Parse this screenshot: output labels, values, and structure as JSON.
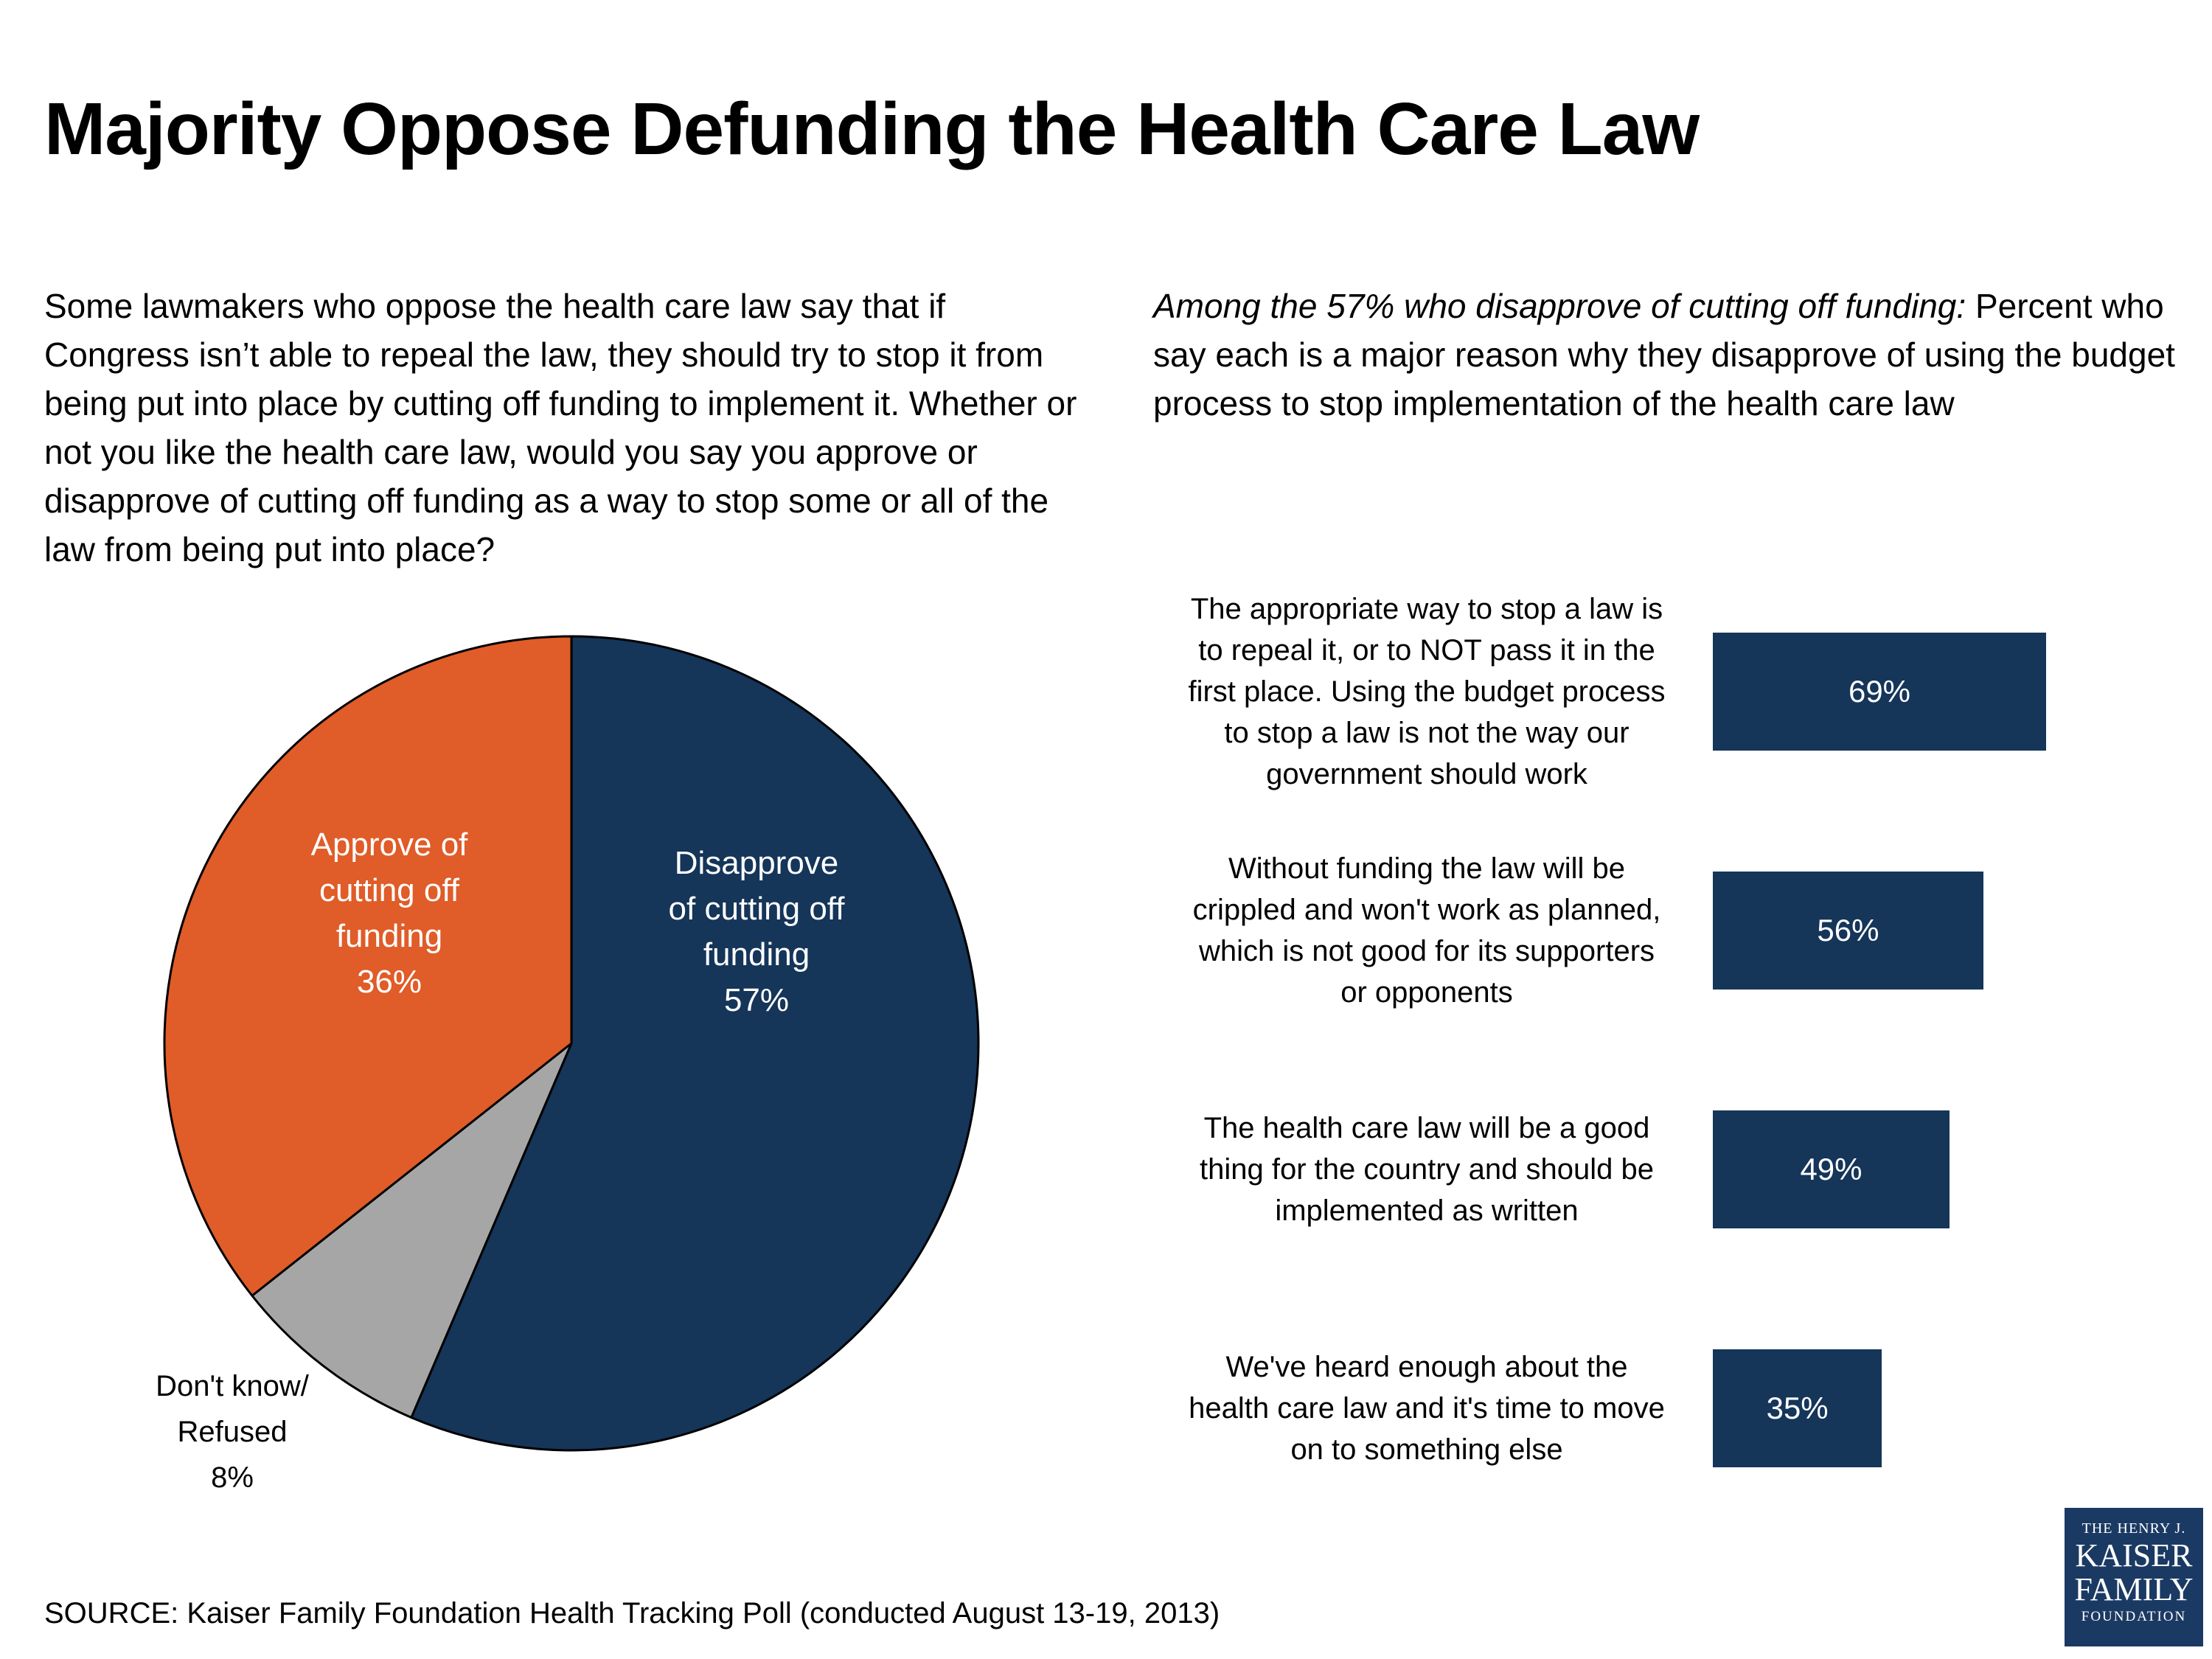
{
  "title": "Majority Oppose Defunding the Health Care Law",
  "left_question": "Some lawmakers who oppose the health care law say that if Congress isn’t able to repeal the law, they should try to stop it from being put into place by cutting off funding to implement it. Whether or not you like the health care law, would you say you approve or disapprove of cutting off funding as a way to stop some or all of the law from being put into place?",
  "right_intro": {
    "italic": "Among the 57% who disapprove of cutting off funding:",
    "rest": " Percent who say each is a major reason why they disapprove of using the budget process to stop implementation of the health care law"
  },
  "source": "SOURCE: Kaiser Family Foundation Health Tracking Poll (conducted August 13-19, 2013)",
  "logo": {
    "line1": "THE HENRY J.",
    "line2": "KAISER",
    "line3": "FAMILY",
    "line4": "FOUNDATION"
  },
  "colors": {
    "navy": "#153559",
    "orange": "#E05C28",
    "gray": "#A6A6A6"
  },
  "chart_data": [
    {
      "type": "pie",
      "slices": [
        {
          "label": "Disapprove of cutting off funding",
          "value": 57,
          "value_label": "57%",
          "color": "#153559",
          "label_lines": [
            "Disapprove",
            "of cutting off",
            "funding"
          ]
        },
        {
          "label": "Don't know/ Refused",
          "value": 8,
          "value_label": "8%",
          "color": "#A6A6A6",
          "label_lines": [
            "Don't know/",
            "Refused"
          ]
        },
        {
          "label": "Approve of cutting off funding",
          "value": 36,
          "value_label": "36%",
          "color": "#E05C28",
          "label_lines": [
            "Approve of",
            "cutting off",
            "funding"
          ]
        }
      ]
    },
    {
      "type": "bar",
      "orientation": "horizontal",
      "categories": [
        "The appropriate way to stop a law is to repeal it, or to NOT pass it in the first place. Using the budget process to stop a law is not the way our government should work",
        "Without funding the law will be crippled and won't work as planned, which is not good for its supporters or opponents",
        "The health care law will be a good thing for the country and should be implemented as written",
        "We've heard enough about the health care law and it's time to move on to something else"
      ],
      "category_lines": [
        [
          "The appropriate way to stop a law is",
          "to repeal it, or to NOT pass it in the",
          "first place. Using the budget process",
          "to stop a law is not the way our",
          "government should work"
        ],
        [
          "Without funding the law will be",
          "crippled and won't work as planned,",
          "which is not good for its supporters",
          "or opponents"
        ],
        [
          "The health care law will be a good",
          "thing for the country and should be",
          "implemented as written"
        ],
        [
          "We've heard enough about the",
          "health care law and it's time to move",
          "on to something else"
        ]
      ],
      "values": [
        69,
        56,
        49,
        35
      ],
      "value_labels": [
        "69%",
        "56%",
        "49%",
        "35%"
      ],
      "color": "#153559",
      "xlim": [
        0,
        100
      ]
    }
  ]
}
